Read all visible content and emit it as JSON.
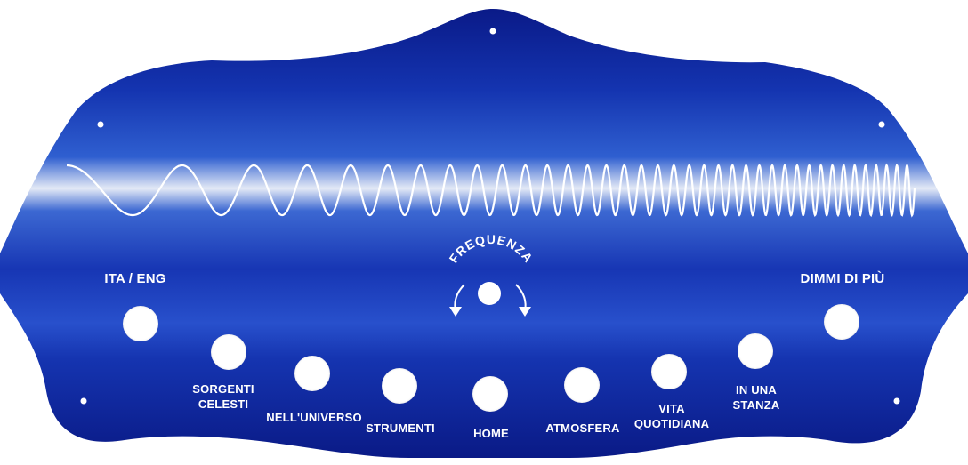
{
  "panel": {
    "colors": {
      "deep_blue": "#0b1d8f",
      "mid_blue": "#1b3fc0",
      "highlight": "#e6ecf7",
      "text": "#ffffff"
    }
  },
  "wave": {
    "description_icon": "chirp-wave-icon"
  },
  "frequency": {
    "label": "FREQUENZA",
    "icon": "rotate-arrows-icon"
  },
  "controls": {
    "ita_eng": "ITA / ENG",
    "dimmi": "DIMMI DI PIÙ",
    "sorgenti_1": "SORGENTI",
    "sorgenti_2": "CELESTI",
    "universo": "NELL'UNIVERSO",
    "strumenti": "STRUMENTI",
    "home": "HOME",
    "atmosfera": "ATMOSFERA",
    "vita_1": "VITA",
    "vita_2": "QUOTIDIANA",
    "stanza_1": "IN UNA",
    "stanza_2": "STANZA"
  }
}
